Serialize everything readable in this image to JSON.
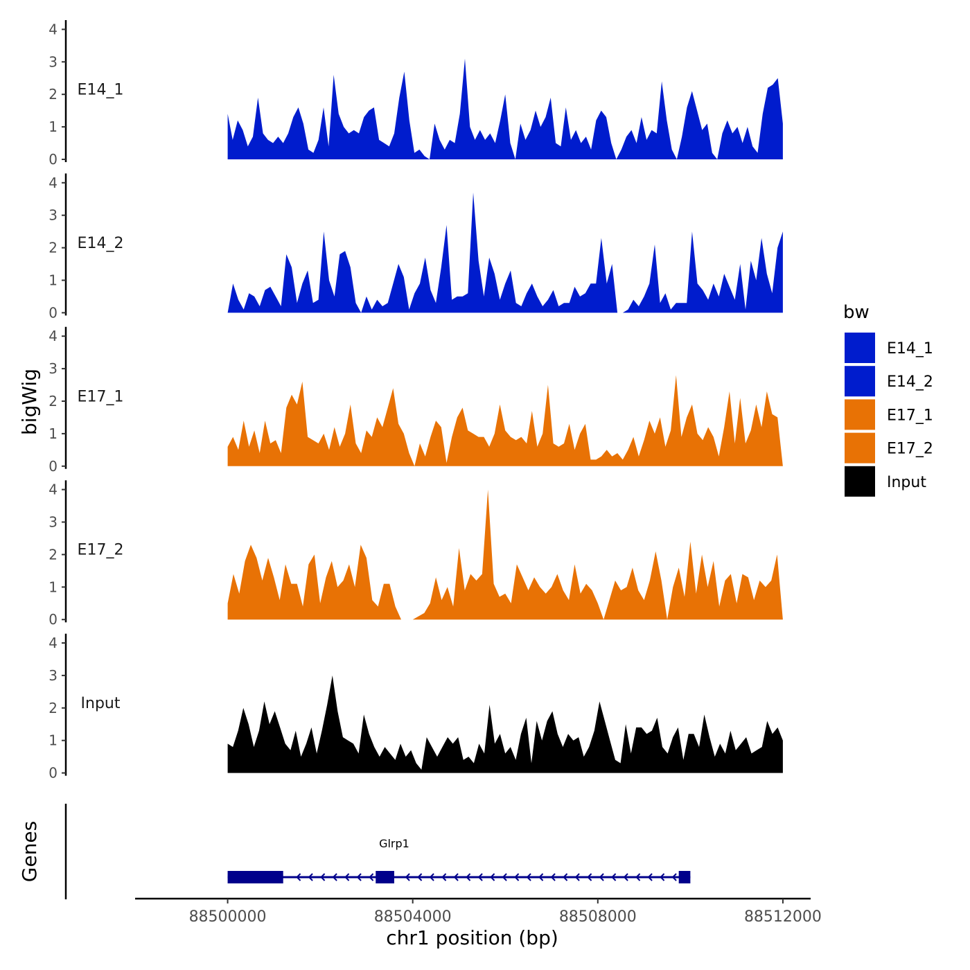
{
  "chart_data": {
    "type": "area",
    "title": "",
    "xlabel": "chr1 position (bp)",
    "ylabel": "bigWig",
    "genes_label": "Genes",
    "xlim": [
      88498000,
      88512600
    ],
    "x_ticks": [
      {
        "value": 88500000,
        "label": "88500000"
      },
      {
        "value": 88504000,
        "label": "88504000"
      },
      {
        "value": 88508000,
        "label": "88508000"
      },
      {
        "value": 88512000,
        "label": "88512000"
      }
    ],
    "ylim": [
      0,
      4.2
    ],
    "y_ticks": [
      {
        "value": 0,
        "label": "0"
      },
      {
        "value": 1,
        "label": "1"
      },
      {
        "value": 2,
        "label": "2"
      },
      {
        "value": 3,
        "label": "3"
      },
      {
        "value": 4,
        "label": "4"
      }
    ],
    "legend": {
      "title": "bw",
      "position": "right",
      "entries": [
        {
          "name": "E14_1",
          "color": "#001ccd"
        },
        {
          "name": "E14_2",
          "color": "#001ccd"
        },
        {
          "name": "E17_1",
          "color": "#e87205"
        },
        {
          "name": "E17_2",
          "color": "#e87205"
        },
        {
          "name": "Input",
          "color": "#000000"
        }
      ]
    },
    "series": [
      {
        "name": "E14_1",
        "color": "#001ccd",
        "x_start": 88500000,
        "x_end": 88512000,
        "values": [
          1.4,
          0.6,
          1.2,
          0.9,
          0.4,
          0.7,
          1.9,
          0.8,
          0.6,
          0.5,
          0.7,
          0.5,
          0.8,
          1.3,
          1.6,
          1.1,
          0.3,
          0.2,
          0.6,
          1.6,
          0.4,
          2.6,
          1.4,
          1.0,
          0.8,
          0.9,
          0.8,
          1.3,
          1.5,
          1.6,
          0.6,
          0.5,
          0.4,
          0.8,
          1.9,
          2.7,
          1.2,
          0.2,
          0.3,
          0.1,
          0.0,
          1.1,
          0.6,
          0.3,
          0.6,
          0.5,
          1.4,
          3.1,
          1.0,
          0.6,
          0.9,
          0.6,
          0.8,
          0.5,
          1.2,
          2.0,
          0.5,
          0.0,
          1.1,
          0.6,
          0.9,
          1.5,
          1.0,
          1.3,
          1.9,
          0.5,
          0.4,
          1.6,
          0.6,
          0.9,
          0.5,
          0.7,
          0.3,
          1.2,
          1.5,
          1.3,
          0.5,
          0.0,
          0.3,
          0.7,
          0.9,
          0.5,
          1.3,
          0.6,
          0.9,
          0.8,
          2.4,
          1.2,
          0.3,
          0.0,
          0.7,
          1.6,
          2.1,
          1.5,
          0.9,
          1.1,
          0.2,
          0.0,
          0.8,
          1.2,
          0.8,
          1.0,
          0.5,
          1.0,
          0.4,
          0.2,
          1.4,
          2.2,
          2.3,
          2.5,
          1.1
        ]
      },
      {
        "name": "E14_2",
        "color": "#001ccd",
        "x_start": 88500000,
        "x_end": 88512000,
        "values": [
          0.0,
          0.9,
          0.4,
          0.1,
          0.6,
          0.5,
          0.2,
          0.7,
          0.8,
          0.5,
          0.2,
          1.8,
          1.4,
          0.3,
          0.9,
          1.3,
          0.3,
          0.4,
          2.5,
          1.0,
          0.5,
          1.8,
          1.9,
          1.4,
          0.3,
          0.0,
          0.5,
          0.1,
          0.4,
          0.2,
          0.3,
          0.9,
          1.5,
          1.1,
          0.1,
          0.6,
          0.9,
          1.7,
          0.7,
          0.3,
          1.4,
          2.7,
          0.4,
          0.5,
          0.5,
          0.6,
          3.7,
          1.6,
          0.5,
          1.7,
          1.2,
          0.4,
          0.9,
          1.3,
          0.3,
          0.2,
          0.6,
          0.9,
          0.5,
          0.2,
          0.4,
          0.7,
          0.2,
          0.3,
          0.3,
          0.8,
          0.5,
          0.6,
          0.9,
          0.9,
          2.3,
          0.9,
          1.5,
          0.0,
          0.0,
          0.1,
          0.4,
          0.2,
          0.5,
          0.9,
          2.1,
          0.3,
          0.6,
          0.1,
          0.3,
          0.3,
          0.3,
          2.5,
          0.9,
          0.7,
          0.4,
          0.9,
          0.5,
          1.2,
          0.8,
          0.4,
          1.5,
          0.1,
          1.6,
          1.0,
          2.3,
          1.2,
          0.6,
          2.0,
          2.5
        ]
      },
      {
        "name": "E17_1",
        "color": "#e87205",
        "x_start": 88500000,
        "x_end": 88512000,
        "values": [
          0.6,
          0.9,
          0.5,
          1.4,
          0.6,
          1.1,
          0.4,
          1.4,
          0.7,
          0.8,
          0.4,
          1.8,
          2.2,
          1.9,
          2.6,
          0.9,
          0.8,
          0.7,
          1.0,
          0.5,
          1.2,
          0.6,
          1.0,
          1.9,
          0.7,
          0.4,
          1.1,
          0.9,
          1.5,
          1.2,
          1.8,
          2.4,
          1.3,
          1.0,
          0.4,
          0.0,
          0.7,
          0.3,
          0.9,
          1.4,
          1.2,
          0.1,
          0.9,
          1.5,
          1.8,
          1.1,
          1.0,
          0.9,
          0.9,
          0.6,
          1.0,
          1.9,
          1.1,
          0.9,
          0.8,
          0.9,
          0.7,
          1.7,
          0.6,
          1.0,
          2.5,
          0.7,
          0.6,
          0.7,
          1.3,
          0.5,
          1.0,
          1.3,
          0.2,
          0.2,
          0.3,
          0.5,
          0.3,
          0.4,
          0.2,
          0.5,
          0.9,
          0.3,
          0.8,
          1.4,
          1.0,
          1.5,
          0.6,
          1.1,
          2.8,
          0.9,
          1.5,
          1.9,
          1.0,
          0.8,
          1.2,
          0.9,
          0.3,
          1.2,
          2.3,
          0.7,
          2.1,
          0.7,
          1.1,
          1.9,
          1.2,
          2.3,
          1.6,
          1.5,
          0.0
        ]
      },
      {
        "name": "E17_2",
        "color": "#e87205",
        "x_start": 88500000,
        "x_end": 88512000,
        "values": [
          0.5,
          1.4,
          0.8,
          1.8,
          2.3,
          1.9,
          1.2,
          1.9,
          1.3,
          0.6,
          1.7,
          1.1,
          1.1,
          0.4,
          1.7,
          2.0,
          0.5,
          1.3,
          1.8,
          1.0,
          1.2,
          1.7,
          1.0,
          2.3,
          1.9,
          0.6,
          0.4,
          1.1,
          1.1,
          0.4,
          0.0,
          0.0,
          0.0,
          0.1,
          0.2,
          0.5,
          1.3,
          0.6,
          1.0,
          0.4,
          2.2,
          0.9,
          1.4,
          1.2,
          1.4,
          4.0,
          1.1,
          0.7,
          0.8,
          0.5,
          1.7,
          1.3,
          0.9,
          1.3,
          1.0,
          0.8,
          1.0,
          1.4,
          0.9,
          0.6,
          1.7,
          0.8,
          1.1,
          0.9,
          0.5,
          0.0,
          0.6,
          1.2,
          0.9,
          1.0,
          1.6,
          0.9,
          0.6,
          1.2,
          2.1,
          1.2,
          0.0,
          1.0,
          1.6,
          0.7,
          2.4,
          0.8,
          2.0,
          1.0,
          1.8,
          0.4,
          1.2,
          1.4,
          0.5,
          1.4,
          1.3,
          0.6,
          1.2,
          1.0,
          1.2,
          2.0,
          0.0
        ]
      },
      {
        "name": "Input",
        "color": "#000000",
        "x_start": 88500000,
        "x_end": 88512000,
        "values": [
          0.9,
          0.8,
          1.3,
          2.0,
          1.5,
          0.8,
          1.3,
          2.2,
          1.5,
          1.9,
          1.4,
          0.9,
          0.7,
          1.3,
          0.5,
          0.9,
          1.4,
          0.6,
          1.3,
          2.1,
          3.0,
          1.9,
          1.1,
          1.0,
          0.9,
          0.6,
          1.8,
          1.2,
          0.8,
          0.5,
          0.8,
          0.6,
          0.4,
          0.9,
          0.5,
          0.7,
          0.3,
          0.1,
          1.1,
          0.8,
          0.5,
          0.8,
          1.1,
          0.9,
          1.1,
          0.4,
          0.5,
          0.3,
          0.9,
          0.6,
          2.1,
          0.9,
          1.2,
          0.6,
          0.8,
          0.4,
          1.2,
          1.7,
          0.3,
          1.6,
          1.0,
          1.6,
          1.9,
          1.2,
          0.8,
          1.2,
          1.0,
          1.1,
          0.5,
          0.8,
          1.3,
          2.2,
          1.6,
          1.0,
          0.4,
          0.3,
          1.5,
          0.6,
          1.4,
          1.4,
          1.2,
          1.3,
          1.7,
          0.8,
          0.6,
          1.1,
          1.4,
          0.4,
          1.2,
          1.2,
          0.8,
          1.8,
          1.1,
          0.5,
          0.9,
          0.6,
          1.3,
          0.7,
          0.9,
          1.1,
          0.6,
          0.7,
          0.8,
          1.6,
          1.2,
          1.4,
          1.0
        ]
      }
    ],
    "genes": [
      {
        "name": "Glrp1",
        "strand": "-",
        "color": "#00008b",
        "start": 88500000,
        "end": 88510000,
        "exons": [
          {
            "start": 88500000,
            "end": 88501200
          },
          {
            "start": 88503200,
            "end": 88503600
          },
          {
            "start": 88509750,
            "end": 88510000
          }
        ]
      }
    ]
  }
}
